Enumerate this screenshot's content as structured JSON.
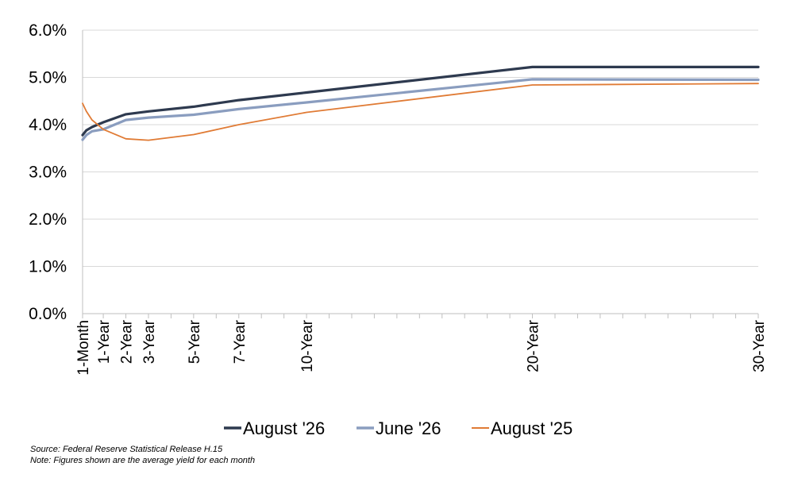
{
  "chart_data": {
    "type": "line",
    "x_labels": [
      "1-Month",
      "1-Year",
      "2-Year",
      "3-Year",
      "5-Year",
      "7-Year",
      "10-Year",
      "20-Year",
      "30-Year"
    ],
    "x_points": [
      0.083,
      0.25,
      0.5,
      1,
      2,
      3,
      5,
      7,
      10,
      20,
      30
    ],
    "ylim": [
      0,
      6
    ],
    "y_ticks": [
      "0.0%",
      "1.0%",
      "2.0%",
      "3.0%",
      "4.0%",
      "5.0%",
      "6.0%"
    ],
    "grid": "horizontal",
    "legend_position": "bottom",
    "series": [
      {
        "name": "August '26",
        "color": "#2e3a4f",
        "values": [
          3.78,
          3.88,
          3.95,
          4.05,
          4.22,
          4.28,
          4.38,
          4.52,
          4.68,
          5.22,
          5.22
        ]
      },
      {
        "name": "June '26",
        "color": "#8a9dbf",
        "values": [
          3.68,
          3.78,
          3.86,
          3.9,
          4.1,
          4.15,
          4.21,
          4.33,
          4.47,
          4.96,
          4.95
        ]
      },
      {
        "name": "August '25",
        "color": "#e07b35",
        "values": [
          4.45,
          4.28,
          4.1,
          3.9,
          3.7,
          3.67,
          3.79,
          4.0,
          4.26,
          4.84,
          4.87
        ]
      }
    ]
  },
  "notes": {
    "source": "Source: Federal Reserve Statistical Release H.15",
    "note": "Note: Figures shown are the average yield for each month"
  }
}
